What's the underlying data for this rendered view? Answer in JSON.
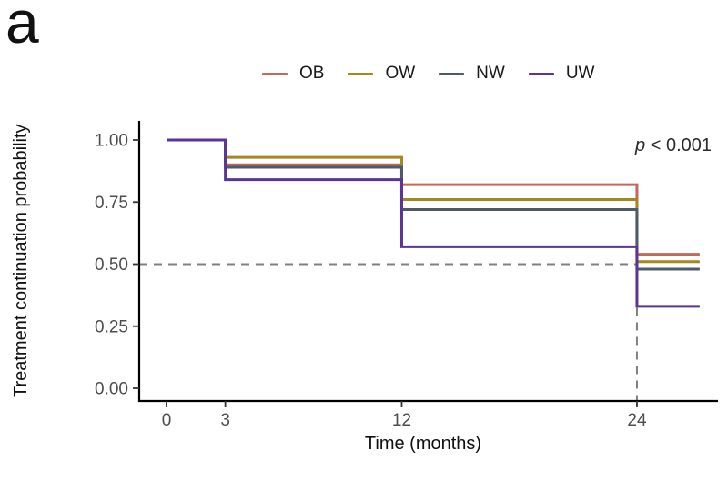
{
  "panel_label": "a",
  "p_label": {
    "symbol": "p",
    "text": " < 0.001"
  },
  "colors": {
    "axis_line": "#000000",
    "tick_text": "#4d4d4d",
    "reference_dash": "#808080"
  },
  "chart_data": {
    "type": "line",
    "subtype": "kaplan-meier-step",
    "title": "",
    "xlabel": "Time (months)",
    "ylabel": "Treatment continuation probability",
    "xlim": [
      -1.4,
      28.2
    ],
    "ylim": [
      0.0,
      1.05
    ],
    "x_ticks": [
      0,
      3,
      12,
      24
    ],
    "x_tick_labels": [
      "0",
      "3",
      "12",
      "24"
    ],
    "y_ticks": [
      0.0,
      0.25,
      0.5,
      0.75,
      1.0
    ],
    "y_tick_labels": [
      "0.00",
      "0.25",
      "0.50",
      "0.75",
      "1.00"
    ],
    "grid": false,
    "legend_position": "top",
    "curve_end_x": 27.2,
    "reference_lines": {
      "horizontal_y": 0.5,
      "horizontal_x_range": [
        0,
        24
      ],
      "vertical_x": 24,
      "vertical_y_range": [
        0.0,
        0.5
      ],
      "style": "dashed"
    },
    "annotations": [
      {
        "text": "p < 0.001",
        "position": "top-right"
      }
    ],
    "series": [
      {
        "name": "OB",
        "color": "#c1695c",
        "x": [
          0,
          3,
          12,
          24
        ],
        "y": [
          1.0,
          0.9,
          0.82,
          0.54
        ]
      },
      {
        "name": "OW",
        "color": "#a3871f",
        "x": [
          0,
          3,
          12,
          24
        ],
        "y": [
          1.0,
          0.93,
          0.76,
          0.51
        ]
      },
      {
        "name": "NW",
        "color": "#4d5b67",
        "x": [
          0,
          3,
          12,
          24
        ],
        "y": [
          1.0,
          0.89,
          0.72,
          0.48
        ]
      },
      {
        "name": "UW",
        "color": "#5a3593",
        "x": [
          0,
          3,
          12,
          24
        ],
        "y": [
          1.0,
          0.84,
          0.57,
          0.33
        ]
      }
    ]
  }
}
